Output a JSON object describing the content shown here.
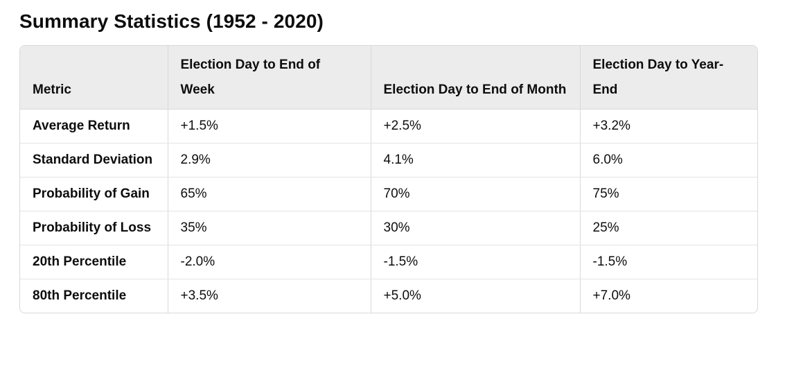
{
  "page": {
    "title": "Summary Statistics (1952 - 2020)"
  },
  "table": {
    "headers": [
      "Metric",
      "Election Day to End of Week",
      "Election Day to End of Month",
      "Election Day to Year-End"
    ],
    "rows": [
      [
        "Average Return",
        "+1.5%",
        "+2.5%",
        "+3.2%"
      ],
      [
        "Standard Deviation",
        "2.9%",
        "4.1%",
        "6.0%"
      ],
      [
        "Probability of Gain",
        "65%",
        "70%",
        "75%"
      ],
      [
        "Probability of Loss",
        "35%",
        "30%",
        "25%"
      ],
      [
        "20th Percentile",
        "-2.0%",
        "-1.5%",
        "-1.5%"
      ],
      [
        "80th Percentile",
        "+3.5%",
        "+5.0%",
        "+7.0%"
      ]
    ]
  }
}
